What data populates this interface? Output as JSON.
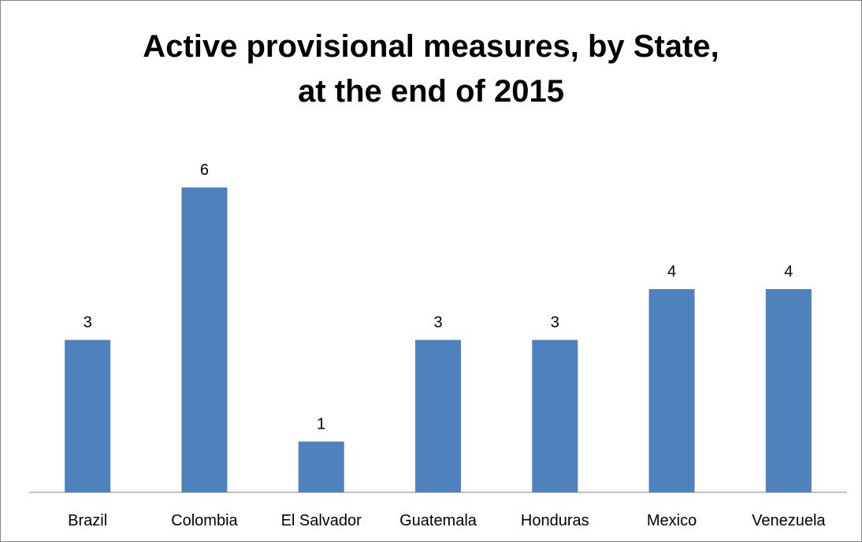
{
  "chart_data": {
    "type": "bar",
    "title_lines": [
      "Active provisional measures, by State,",
      "at the end of 2015"
    ],
    "categories": [
      "Brazil",
      "Colombia",
      "El Salvador",
      "Guatemala",
      "Honduras",
      "Mexico",
      "Venezuela"
    ],
    "values": [
      3,
      6,
      1,
      3,
      3,
      4,
      4
    ],
    "ylim": [
      0,
      6
    ],
    "grid": false,
    "legend": "none",
    "data_labels": true,
    "bar_color": "#4F81BD",
    "axis_color": "#868686"
  }
}
